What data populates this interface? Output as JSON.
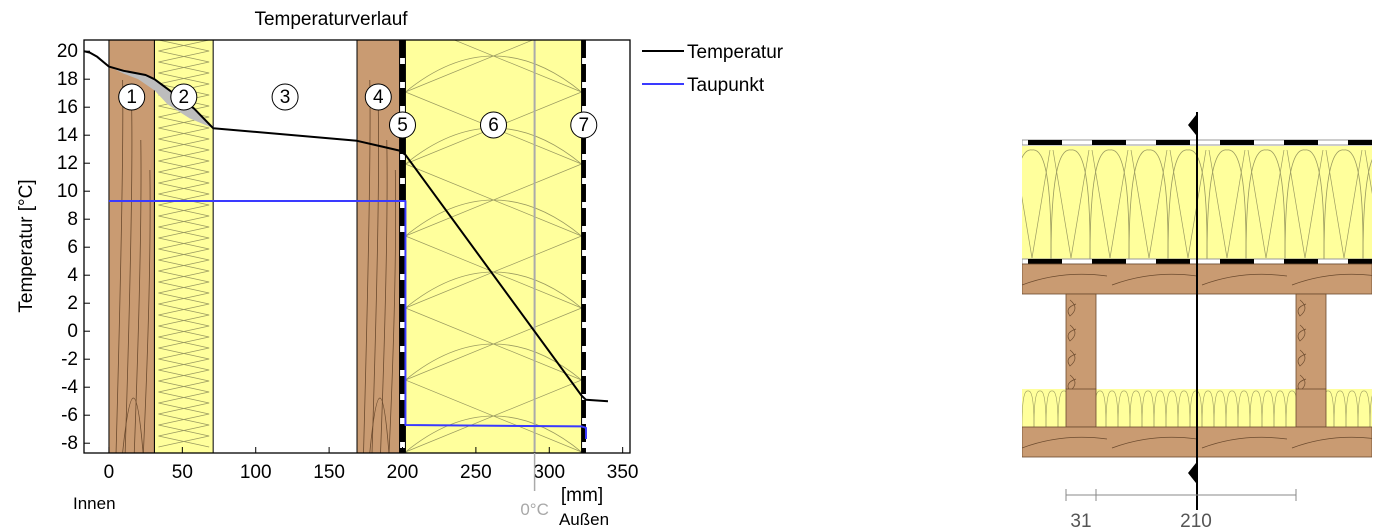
{
  "chart_data": {
    "type": "line",
    "title": "Temperaturverlauf",
    "xlabel": "[mm]",
    "ylabel": "Temperatur [°C]",
    "xlim": [
      -17,
      355
    ],
    "ylim": [
      -8.7,
      20.8
    ],
    "x_ticks": [
      0,
      50,
      100,
      150,
      200,
      250,
      300,
      350
    ],
    "y_ticks": [
      20,
      18,
      16,
      14,
      12,
      10,
      8,
      6,
      4,
      2,
      0,
      -2,
      -4,
      -6,
      -8
    ],
    "annotations": {
      "inside": "Innen",
      "outside": "Außen",
      "zero_c": "0°C"
    },
    "zero_c_position_mm": 290,
    "legend": {
      "placement": "right-outside",
      "entries": [
        {
          "label": "Temperatur",
          "color": "#000000"
        },
        {
          "label": "Taupunkt",
          "color": "#3a3aff"
        }
      ]
    },
    "layers": [
      {
        "label": "1",
        "material": "wood",
        "from": 0,
        "to": 31
      },
      {
        "label": "2",
        "material": "insulation",
        "from": 31,
        "to": 71
      },
      {
        "label": "3",
        "material": "air",
        "from": 71,
        "to": 169
      },
      {
        "label": "4",
        "material": "wood",
        "from": 169,
        "to": 198
      },
      {
        "label": "5",
        "material": "membrane",
        "from": 198,
        "to": 202
      },
      {
        "label": "6",
        "material": "insulation",
        "from": 202,
        "to": 322
      },
      {
        "label": "7",
        "material": "membrane",
        "from": 322,
        "to": 325
      }
    ],
    "series": [
      {
        "name": "Temperatur",
        "color": "#000000",
        "x": [
          -17,
          -13,
          -8,
          0,
          10,
          25,
          31,
          58,
          71,
          169,
          198,
          202,
          322,
          325,
          340
        ],
        "y": [
          20.0,
          19.9,
          19.6,
          18.9,
          18.6,
          18.3,
          18.0,
          15.9,
          14.5,
          13.6,
          12.9,
          12.6,
          -4.6,
          -4.9,
          -5.0
        ]
      },
      {
        "name": "Taupunkt",
        "color": "#3a3aff",
        "x": [
          0,
          202,
          202,
          322,
          325,
          325
        ],
        "y": [
          9.3,
          9.3,
          -6.7,
          -6.8,
          -6.9,
          -7.7
        ]
      }
    ],
    "gray_band": {
      "upper_x": [
        0,
        10,
        25,
        31,
        58,
        71
      ],
      "upper_y": [
        18.9,
        18.6,
        18.3,
        18.0,
        15.9,
        14.5
      ],
      "lower_x": [
        71,
        55,
        40,
        31,
        20,
        10,
        0
      ],
      "lower_y": [
        14.5,
        15.2,
        16.2,
        17.2,
        18.0,
        18.4,
        18.9
      ]
    }
  },
  "section_drawing": {
    "dimensions": [
      "31",
      "210"
    ]
  }
}
